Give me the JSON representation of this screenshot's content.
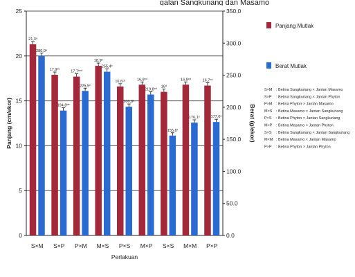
{
  "caption": "galan Sangkuriang dan Masamo",
  "chart_data": {
    "type": "bar",
    "xlabel": "Perlakuan",
    "ylabel": "Panjang (cm/ekor)",
    "y2label": "Berat (g/ekor)",
    "ylim": [
      0,
      25
    ],
    "y2lim": [
      0,
      350
    ],
    "yticks": [
      "0",
      "5",
      "10",
      "15",
      "20",
      "25"
    ],
    "y2ticks": [
      "0.0",
      "50.0",
      "100.0",
      "150.0",
      "200.0",
      "250.0",
      "300.0",
      "350.0"
    ],
    "categories": [
      "S×M",
      "S×P",
      "P×M",
      "M×S",
      "P×S",
      "M×P",
      "S×S",
      "M×M",
      "P×P"
    ],
    "series": [
      {
        "name": "Panjang Mutlak",
        "axis": "left",
        "color": "#a3283a",
        "values": [
          21.3,
          17.9,
          17.7,
          18.9,
          16.6,
          16.8,
          16.0,
          16.8,
          16.7
        ],
        "labels": [
          "21,3ᵃ",
          "17,9ᵇᶜ",
          "17,7ᵇᶜᵈ",
          "18,9ᵇ",
          "16,6ᶜᵈ",
          "16,8ᶜᵈ",
          "16ᵈ",
          "16,8ᶜᵈ",
          "16,7ᶜᵈ"
        ]
      },
      {
        "name": "Berat Mutlak",
        "axis": "right",
        "color": "#2a6bd1",
        "values": [
          280.0,
          194.8,
          225.5,
          255.4,
          200.8,
          219.8,
          155.8,
          176.1,
          177.0
        ],
        "labels": [
          "280,0ᵃ",
          "194,8ᵈᵉ",
          "225,5ᶜ",
          "255,4ᵇ",
          "200,8ᵈ",
          "219,8ᶜᵈ",
          "155,8ᶠ",
          "176,1ᵉ",
          "177,0ᵉ"
        ]
      }
    ],
    "legend_position": "right",
    "key": [
      {
        "code": "S×M",
        "desc": ": Betina Sangkuriang × Jantan Masamo"
      },
      {
        "code": "S×P",
        "desc": ": Betina Sangkuriang × Jantan Phyton"
      },
      {
        "code": "P×M",
        "desc": ": Betina Phyton × Jantan Masamo"
      },
      {
        "code": "M×S",
        "desc": ": Betina Masamo × Jantan Sangkuriang"
      },
      {
        "code": "P×S",
        "desc": ": Betina Phyton × Jantan Sangkuriang"
      },
      {
        "code": "M×P",
        "desc": ": Betina Masamo × Jantan Phyton"
      },
      {
        "code": "S×S",
        "desc": ": Betina Sangkuriang × Jantan Sangkuriang"
      },
      {
        "code": "M×M",
        "desc": ": Betina Masamo × Jantan Masamo"
      },
      {
        "code": "P×P",
        "desc": ": Betina Phyton × Jantan Phyton"
      }
    ]
  }
}
